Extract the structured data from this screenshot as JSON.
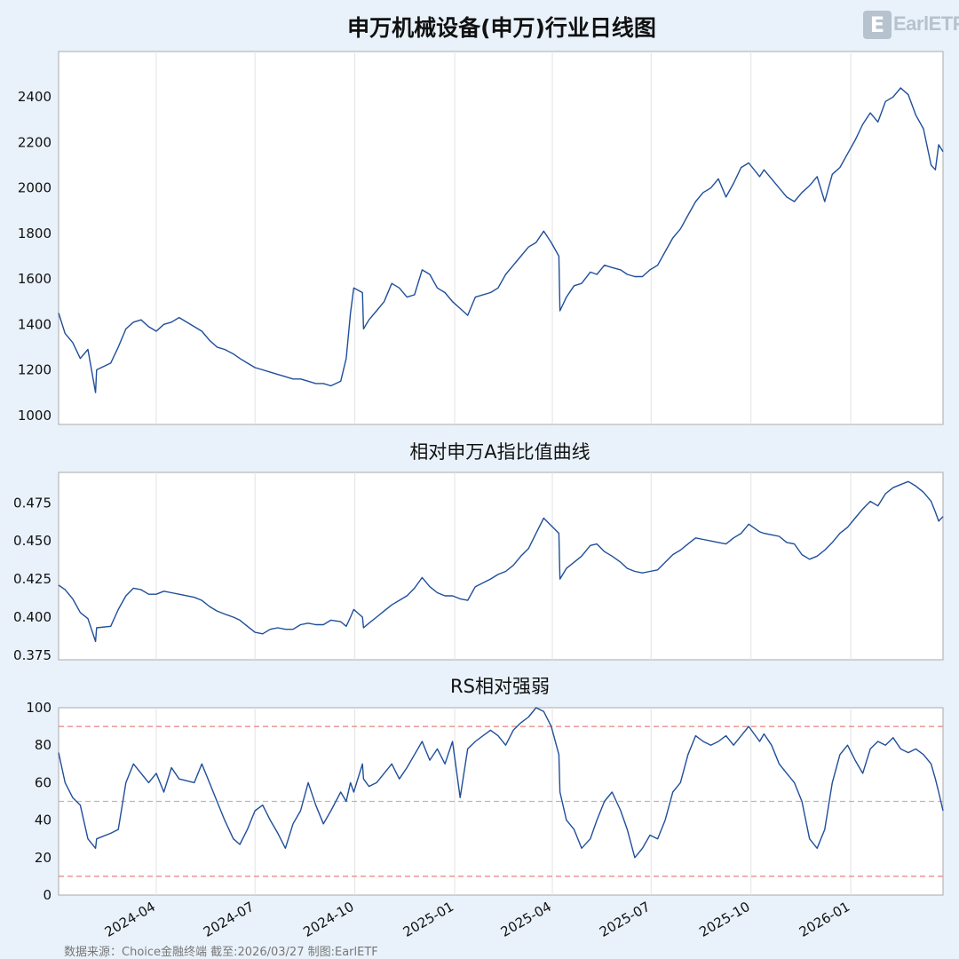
{
  "footer_text": "数据来源：Choice金融终端 截至:2026/03/27 制图:EarlETF",
  "logo": {
    "text": "EarlETF",
    "mark": "E",
    "color": "#b6c2cd"
  },
  "colors": {
    "line": "#1f4e9a",
    "grid": "#e3e3e3",
    "red_ref": "#e8827d",
    "gray_ref": "#b8b8b8",
    "background": "#e9f2fb",
    "plot_bg": "#ffffff"
  },
  "chart_data": [
    {
      "type": "line",
      "title": "申万机械设备(申万)行业日线图",
      "ylim": [
        960,
        2600
      ],
      "yticks": [
        1000,
        1200,
        1400,
        1600,
        1800,
        2000,
        2200,
        2400
      ],
      "xlim": [
        "2024-01-02",
        "2026-03-27"
      ],
      "xticks": [
        "2024-04-01",
        "2024-07-01",
        "2024-10-01",
        "2025-01-01",
        "2025-04-01",
        "2025-07-01",
        "2025-10-01",
        "2026-01-01"
      ],
      "grid": "vertical",
      "series": [
        {
          "x": [
            "2024-01-02",
            "2024-01-08",
            "2024-01-15",
            "2024-01-22",
            "2024-01-29",
            "2024-02-05",
            "2024-02-06",
            "2024-02-19",
            "2024-02-26",
            "2024-03-04",
            "2024-03-11",
            "2024-03-18",
            "2024-03-25",
            "2024-04-01",
            "2024-04-08",
            "2024-04-15",
            "2024-04-22",
            "2024-05-06",
            "2024-05-13",
            "2024-05-20",
            "2024-05-27",
            "2024-06-03",
            "2024-06-11",
            "2024-06-17",
            "2024-06-24",
            "2024-07-01",
            "2024-07-08",
            "2024-07-15",
            "2024-07-22",
            "2024-07-29",
            "2024-08-05",
            "2024-08-12",
            "2024-08-19",
            "2024-08-26",
            "2024-09-02",
            "2024-09-09",
            "2024-09-18",
            "2024-09-23",
            "2024-09-27",
            "2024-09-30",
            "2024-10-08",
            "2024-10-09",
            "2024-10-14",
            "2024-10-21",
            "2024-10-28",
            "2024-11-04",
            "2024-11-11",
            "2024-11-18",
            "2024-11-25",
            "2024-12-02",
            "2024-12-09",
            "2024-12-16",
            "2024-12-23",
            "2024-12-30",
            "2025-01-06",
            "2025-01-13",
            "2025-01-20",
            "2025-02-03",
            "2025-02-10",
            "2025-02-17",
            "2025-02-24",
            "2025-03-03",
            "2025-03-10",
            "2025-03-17",
            "2025-03-24",
            "2025-03-31",
            "2025-04-07",
            "2025-04-08",
            "2025-04-14",
            "2025-04-21",
            "2025-04-28",
            "2025-05-06",
            "2025-05-12",
            "2025-05-19",
            "2025-05-26",
            "2025-06-03",
            "2025-06-09",
            "2025-06-16",
            "2025-06-23",
            "2025-06-30",
            "2025-07-07",
            "2025-07-14",
            "2025-07-21",
            "2025-07-28",
            "2025-08-04",
            "2025-08-11",
            "2025-08-18",
            "2025-08-25",
            "2025-09-01",
            "2025-09-08",
            "2025-09-15",
            "2025-09-22",
            "2025-09-29",
            "2025-10-09",
            "2025-10-13",
            "2025-10-20",
            "2025-10-27",
            "2025-11-03",
            "2025-11-10",
            "2025-11-17",
            "2025-11-24",
            "2025-12-01",
            "2025-12-08",
            "2025-12-15",
            "2025-12-22",
            "2025-12-29",
            "2026-01-05",
            "2026-01-12",
            "2026-01-19",
            "2026-01-26",
            "2026-02-02",
            "2026-02-09",
            "2026-02-16",
            "2026-02-23",
            "2026-03-02",
            "2026-03-09",
            "2026-03-16",
            "2026-03-20",
            "2026-03-23",
            "2026-03-27"
          ],
          "y": [
            1450,
            1360,
            1320,
            1250,
            1290,
            1100,
            1200,
            1230,
            1300,
            1380,
            1410,
            1420,
            1390,
            1370,
            1400,
            1410,
            1430,
            1390,
            1370,
            1330,
            1300,
            1290,
            1270,
            1250,
            1230,
            1210,
            1200,
            1190,
            1180,
            1170,
            1160,
            1160,
            1150,
            1140,
            1140,
            1130,
            1150,
            1250,
            1450,
            1560,
            1540,
            1380,
            1420,
            1460,
            1500,
            1580,
            1560,
            1520,
            1530,
            1640,
            1620,
            1560,
            1540,
            1500,
            1470,
            1440,
            1520,
            1540,
            1560,
            1620,
            1660,
            1700,
            1740,
            1760,
            1810,
            1760,
            1700,
            1460,
            1520,
            1570,
            1580,
            1630,
            1620,
            1660,
            1650,
            1640,
            1620,
            1610,
            1610,
            1640,
            1660,
            1720,
            1780,
            1820,
            1880,
            1940,
            1980,
            2000,
            2040,
            1960,
            2020,
            2090,
            2110,
            2050,
            2080,
            2040,
            2000,
            1960,
            1940,
            1980,
            2010,
            2050,
            1940,
            2060,
            2090,
            2150,
            2210,
            2280,
            2330,
            2290,
            2380,
            2400,
            2440,
            2410,
            2320,
            2260,
            2100,
            2080,
            2190,
            2160
          ]
        }
      ]
    },
    {
      "type": "line",
      "title": "相对申万A指比值曲线",
      "ylim": [
        0.372,
        0.495
      ],
      "yticks": [
        0.375,
        0.4,
        0.425,
        0.45,
        0.475
      ],
      "ytick_labels": [
        "0.375",
        "0.400",
        "0.425",
        "0.450",
        "0.475"
      ],
      "xlim": [
        "2024-01-02",
        "2026-03-27"
      ],
      "xticks": [
        "2024-04-01",
        "2024-07-01",
        "2024-10-01",
        "2025-01-01",
        "2025-04-01",
        "2025-07-01",
        "2025-10-01",
        "2026-01-01"
      ],
      "grid": "vertical",
      "series": [
        {
          "x": [
            "2024-01-02",
            "2024-01-08",
            "2024-01-15",
            "2024-01-22",
            "2024-01-29",
            "2024-02-05",
            "2024-02-06",
            "2024-02-19",
            "2024-02-26",
            "2024-03-04",
            "2024-03-11",
            "2024-03-18",
            "2024-03-25",
            "2024-04-01",
            "2024-04-08",
            "2024-04-15",
            "2024-04-22",
            "2024-05-06",
            "2024-05-13",
            "2024-05-20",
            "2024-05-27",
            "2024-06-03",
            "2024-06-11",
            "2024-06-17",
            "2024-06-24",
            "2024-07-01",
            "2024-07-08",
            "2024-07-15",
            "2024-07-22",
            "2024-07-29",
            "2024-08-05",
            "2024-08-12",
            "2024-08-19",
            "2024-08-26",
            "2024-09-02",
            "2024-09-09",
            "2024-09-18",
            "2024-09-23",
            "2024-09-27",
            "2024-09-30",
            "2024-10-08",
            "2024-10-09",
            "2024-10-14",
            "2024-10-21",
            "2024-10-28",
            "2024-11-04",
            "2024-11-11",
            "2024-11-18",
            "2024-11-25",
            "2024-12-02",
            "2024-12-09",
            "2024-12-16",
            "2024-12-23",
            "2024-12-30",
            "2025-01-06",
            "2025-01-13",
            "2025-01-20",
            "2025-02-03",
            "2025-02-10",
            "2025-02-17",
            "2025-02-24",
            "2025-03-03",
            "2025-03-10",
            "2025-03-17",
            "2025-03-24",
            "2025-03-31",
            "2025-04-07",
            "2025-04-08",
            "2025-04-14",
            "2025-04-21",
            "2025-04-28",
            "2025-05-06",
            "2025-05-12",
            "2025-05-19",
            "2025-05-26",
            "2025-06-03",
            "2025-06-09",
            "2025-06-16",
            "2025-06-23",
            "2025-06-30",
            "2025-07-07",
            "2025-07-14",
            "2025-07-21",
            "2025-07-28",
            "2025-08-04",
            "2025-08-11",
            "2025-08-18",
            "2025-08-25",
            "2025-09-01",
            "2025-09-08",
            "2025-09-15",
            "2025-09-22",
            "2025-09-29",
            "2025-10-09",
            "2025-10-13",
            "2025-10-20",
            "2025-10-27",
            "2025-11-03",
            "2025-11-10",
            "2025-11-17",
            "2025-11-24",
            "2025-12-01",
            "2025-12-08",
            "2025-12-15",
            "2025-12-22",
            "2025-12-29",
            "2026-01-05",
            "2026-01-12",
            "2026-01-19",
            "2026-01-26",
            "2026-02-02",
            "2026-02-09",
            "2026-02-16",
            "2026-02-23",
            "2026-03-02",
            "2026-03-09",
            "2026-03-16",
            "2026-03-20",
            "2026-03-23",
            "2026-03-27"
          ],
          "y": [
            0.421,
            0.418,
            0.412,
            0.403,
            0.399,
            0.384,
            0.393,
            0.394,
            0.405,
            0.414,
            0.419,
            0.418,
            0.415,
            0.415,
            0.417,
            0.416,
            0.415,
            0.413,
            0.411,
            0.407,
            0.404,
            0.402,
            0.4,
            0.398,
            0.394,
            0.39,
            0.389,
            0.392,
            0.393,
            0.392,
            0.392,
            0.395,
            0.396,
            0.395,
            0.395,
            0.398,
            0.397,
            0.394,
            0.4,
            0.405,
            0.4,
            0.393,
            0.396,
            0.4,
            0.404,
            0.408,
            0.411,
            0.414,
            0.419,
            0.426,
            0.42,
            0.416,
            0.414,
            0.414,
            0.412,
            0.411,
            0.42,
            0.425,
            0.428,
            0.43,
            0.434,
            0.44,
            0.445,
            0.455,
            0.465,
            0.46,
            0.455,
            0.425,
            0.432,
            0.436,
            0.44,
            0.447,
            0.448,
            0.443,
            0.44,
            0.436,
            0.432,
            0.43,
            0.429,
            0.43,
            0.431,
            0.436,
            0.441,
            0.444,
            0.448,
            0.452,
            0.451,
            0.45,
            0.449,
            0.448,
            0.452,
            0.455,
            0.461,
            0.456,
            0.455,
            0.454,
            0.453,
            0.449,
            0.448,
            0.441,
            0.438,
            0.44,
            0.444,
            0.449,
            0.455,
            0.459,
            0.465,
            0.471,
            0.476,
            0.473,
            0.481,
            0.485,
            0.487,
            0.489,
            0.486,
            0.482,
            0.476,
            0.469,
            0.463,
            0.466
          ]
        }
      ]
    },
    {
      "type": "line",
      "title": "RS相对强弱",
      "ylim": [
        0,
        100
      ],
      "yticks": [
        0,
        20,
        40,
        60,
        80,
        100
      ],
      "xlim": [
        "2024-01-02",
        "2026-03-27"
      ],
      "xticks": [
        "2024-04-01",
        "2024-07-01",
        "2024-10-01",
        "2025-01-01",
        "2025-04-01",
        "2025-07-01",
        "2025-10-01",
        "2026-01-01"
      ],
      "xtick_labels": [
        "2024-04",
        "2024-07",
        "2024-10",
        "2025-01",
        "2025-04",
        "2025-07",
        "2025-10",
        "2026-01"
      ],
      "grid": "vertical",
      "reference_lines": [
        {
          "y": 90,
          "style": "dashed",
          "color": "#e8827d"
        },
        {
          "y": 50,
          "style": "dashed",
          "color": "#b8b8b8"
        },
        {
          "y": 10,
          "style": "dashed",
          "color": "#e8827d"
        }
      ],
      "series": [
        {
          "x": [
            "2024-01-02",
            "2024-01-08",
            "2024-01-15",
            "2024-01-22",
            "2024-01-29",
            "2024-02-05",
            "2024-02-06",
            "2024-02-19",
            "2024-02-26",
            "2024-03-04",
            "2024-03-11",
            "2024-03-18",
            "2024-03-25",
            "2024-04-01",
            "2024-04-08",
            "2024-04-15",
            "2024-04-22",
            "2024-05-06",
            "2024-05-13",
            "2024-05-20",
            "2024-05-27",
            "2024-06-03",
            "2024-06-11",
            "2024-06-17",
            "2024-06-24",
            "2024-07-01",
            "2024-07-08",
            "2024-07-15",
            "2024-07-22",
            "2024-07-29",
            "2024-08-05",
            "2024-08-12",
            "2024-08-19",
            "2024-08-26",
            "2024-09-02",
            "2024-09-09",
            "2024-09-18",
            "2024-09-23",
            "2024-09-27",
            "2024-09-30",
            "2024-10-08",
            "2024-10-09",
            "2024-10-14",
            "2024-10-21",
            "2024-10-28",
            "2024-11-04",
            "2024-11-11",
            "2024-11-18",
            "2024-11-25",
            "2024-12-02",
            "2024-12-09",
            "2024-12-16",
            "2024-12-23",
            "2024-12-30",
            "2025-01-06",
            "2025-01-13",
            "2025-01-20",
            "2025-02-03",
            "2025-02-10",
            "2025-02-17",
            "2025-02-24",
            "2025-03-03",
            "2025-03-10",
            "2025-03-17",
            "2025-03-24",
            "2025-03-31",
            "2025-04-07",
            "2025-04-08",
            "2025-04-14",
            "2025-04-21",
            "2025-04-28",
            "2025-05-06",
            "2025-05-12",
            "2025-05-19",
            "2025-05-26",
            "2025-06-03",
            "2025-06-09",
            "2025-06-16",
            "2025-06-23",
            "2025-06-30",
            "2025-07-07",
            "2025-07-14",
            "2025-07-21",
            "2025-07-28",
            "2025-08-04",
            "2025-08-11",
            "2025-08-18",
            "2025-08-25",
            "2025-09-01",
            "2025-09-08",
            "2025-09-15",
            "2025-09-22",
            "2025-09-29",
            "2025-10-09",
            "2025-10-13",
            "2025-10-20",
            "2025-10-27",
            "2025-11-03",
            "2025-11-10",
            "2025-11-17",
            "2025-11-24",
            "2025-12-01",
            "2025-12-08",
            "2025-12-15",
            "2025-12-22",
            "2025-12-29",
            "2026-01-05",
            "2026-01-12",
            "2026-01-19",
            "2026-01-26",
            "2026-02-02",
            "2026-02-09",
            "2026-02-16",
            "2026-02-23",
            "2026-03-02",
            "2026-03-09",
            "2026-03-16",
            "2026-03-20",
            "2026-03-23",
            "2026-03-27"
          ],
          "y": [
            76,
            60,
            52,
            48,
            30,
            25,
            30,
            33,
            35,
            60,
            70,
            65,
            60,
            65,
            55,
            68,
            62,
            60,
            70,
            60,
            50,
            40,
            30,
            27,
            35,
            45,
            48,
            40,
            33,
            25,
            38,
            45,
            60,
            48,
            38,
            45,
            55,
            50,
            60,
            55,
            70,
            62,
            58,
            60,
            65,
            70,
            62,
            68,
            75,
            82,
            72,
            78,
            70,
            82,
            52,
            78,
            82,
            88,
            85,
            80,
            88,
            92,
            95,
            100,
            98,
            90,
            75,
            55,
            40,
            35,
            25,
            30,
            40,
            50,
            55,
            45,
            35,
            20,
            25,
            32,
            30,
            40,
            55,
            60,
            75,
            85,
            82,
            80,
            82,
            85,
            80,
            85,
            90,
            82,
            86,
            80,
            70,
            65,
            60,
            50,
            30,
            25,
            35,
            60,
            75,
            80,
            72,
            65,
            78,
            82,
            80,
            84,
            78,
            76,
            78,
            75,
            70,
            62,
            55,
            45
          ]
        }
      ]
    }
  ]
}
